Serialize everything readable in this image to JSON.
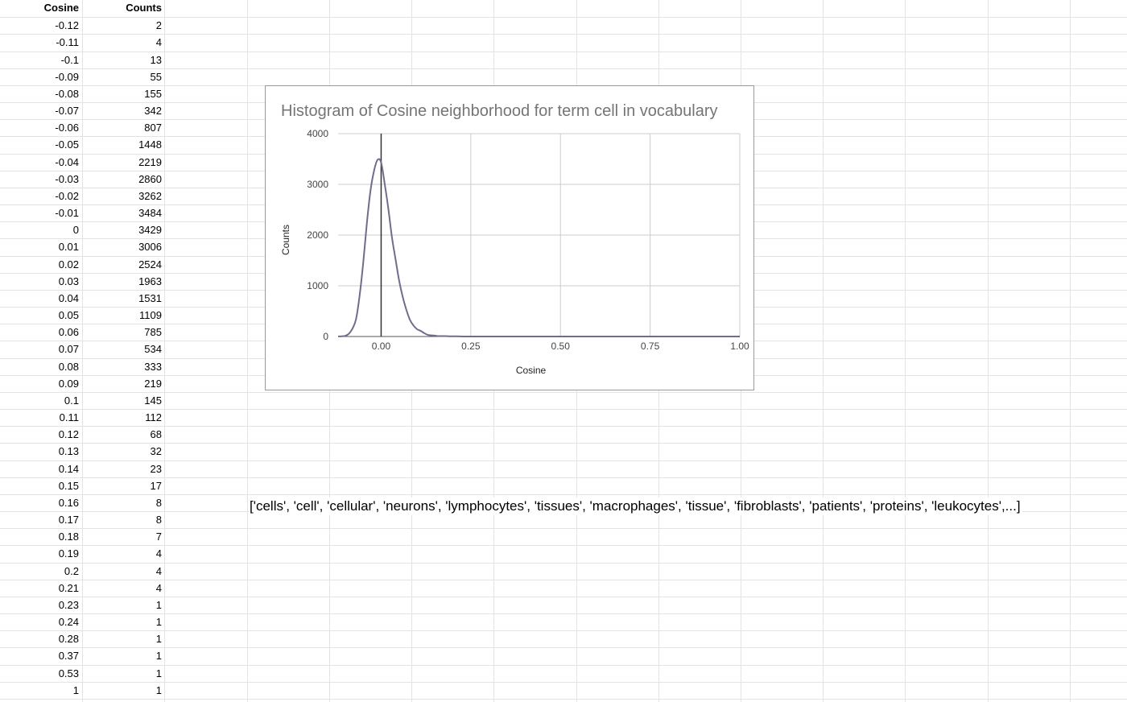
{
  "table": {
    "headers": {
      "a": "Cosine",
      "b": "Counts"
    },
    "rows": [
      {
        "cosine": "-0.12",
        "count": "2"
      },
      {
        "cosine": "-0.11",
        "count": "4"
      },
      {
        "cosine": "-0.1",
        "count": "13"
      },
      {
        "cosine": "-0.09",
        "count": "55"
      },
      {
        "cosine": "-0.08",
        "count": "155"
      },
      {
        "cosine": "-0.07",
        "count": "342"
      },
      {
        "cosine": "-0.06",
        "count": "807"
      },
      {
        "cosine": "-0.05",
        "count": "1448"
      },
      {
        "cosine": "-0.04",
        "count": "2219"
      },
      {
        "cosine": "-0.03",
        "count": "2860"
      },
      {
        "cosine": "-0.02",
        "count": "3262"
      },
      {
        "cosine": "-0.01",
        "count": "3484"
      },
      {
        "cosine": "0",
        "count": "3429"
      },
      {
        "cosine": "0.01",
        "count": "3006"
      },
      {
        "cosine": "0.02",
        "count": "2524"
      },
      {
        "cosine": "0.03",
        "count": "1963"
      },
      {
        "cosine": "0.04",
        "count": "1531"
      },
      {
        "cosine": "0.05",
        "count": "1109"
      },
      {
        "cosine": "0.06",
        "count": "785"
      },
      {
        "cosine": "0.07",
        "count": "534"
      },
      {
        "cosine": "0.08",
        "count": "333"
      },
      {
        "cosine": "0.09",
        "count": "219"
      },
      {
        "cosine": "0.1",
        "count": "145"
      },
      {
        "cosine": "0.11",
        "count": "112"
      },
      {
        "cosine": "0.12",
        "count": "68"
      },
      {
        "cosine": "0.13",
        "count": "32"
      },
      {
        "cosine": "0.14",
        "count": "23"
      },
      {
        "cosine": "0.15",
        "count": "17"
      },
      {
        "cosine": "0.16",
        "count": "8"
      },
      {
        "cosine": "0.17",
        "count": "8"
      },
      {
        "cosine": "0.18",
        "count": "7"
      },
      {
        "cosine": "0.19",
        "count": "4"
      },
      {
        "cosine": "0.2",
        "count": "4"
      },
      {
        "cosine": "0.21",
        "count": "4"
      },
      {
        "cosine": "0.23",
        "count": "1"
      },
      {
        "cosine": "0.24",
        "count": "1"
      },
      {
        "cosine": "0.28",
        "count": "1"
      },
      {
        "cosine": "0.37",
        "count": "1"
      },
      {
        "cosine": "0.53",
        "count": "1"
      },
      {
        "cosine": "1",
        "count": "1"
      }
    ]
  },
  "words_list": "['cells', 'cell', 'cellular', 'neurons', 'lymphocytes', 'tissues', 'macrophages', 'tissue', 'fibroblasts', 'patients', 'proteins', 'leukocytes',...]",
  "chart_data": {
    "type": "line",
    "title": "Histogram of Cosine neighborhood for term cell in vocabulary",
    "xlabel": "Cosine",
    "ylabel": "Counts",
    "xlim": [
      -0.12,
      1.0
    ],
    "ylim": [
      0,
      4000
    ],
    "x_ticks": [
      0,
      0.25,
      0.5,
      0.75,
      1.0
    ],
    "x_tick_labels": [
      "0.00",
      "0.25",
      "0.50",
      "0.75",
      "1.00"
    ],
    "y_ticks": [
      0,
      1000,
      2000,
      3000,
      4000
    ],
    "y_tick_labels": [
      "0",
      "1000",
      "2000",
      "3000",
      "4000"
    ],
    "grid": true,
    "series": [
      {
        "color": "#6e6e8c",
        "x": [
          -0.12,
          -0.11,
          -0.1,
          -0.09,
          -0.08,
          -0.07,
          -0.06,
          -0.05,
          -0.04,
          -0.03,
          -0.02,
          -0.01,
          0,
          0.01,
          0.02,
          0.03,
          0.04,
          0.05,
          0.06,
          0.07,
          0.08,
          0.09,
          0.1,
          0.11,
          0.12,
          0.13,
          0.14,
          0.15,
          0.16,
          0.17,
          0.18,
          0.19,
          0.2,
          0.21,
          0.23,
          0.24,
          0.28,
          0.37,
          0.53,
          1
        ],
        "y": [
          2,
          4,
          13,
          55,
          155,
          342,
          807,
          1448,
          2219,
          2860,
          3262,
          3484,
          3429,
          3006,
          2524,
          1963,
          1531,
          1109,
          785,
          534,
          333,
          219,
          145,
          112,
          68,
          32,
          23,
          17,
          8,
          8,
          7,
          4,
          4,
          4,
          1,
          1,
          1,
          1,
          1,
          1
        ]
      }
    ],
    "zero_line_color": "#333333"
  }
}
